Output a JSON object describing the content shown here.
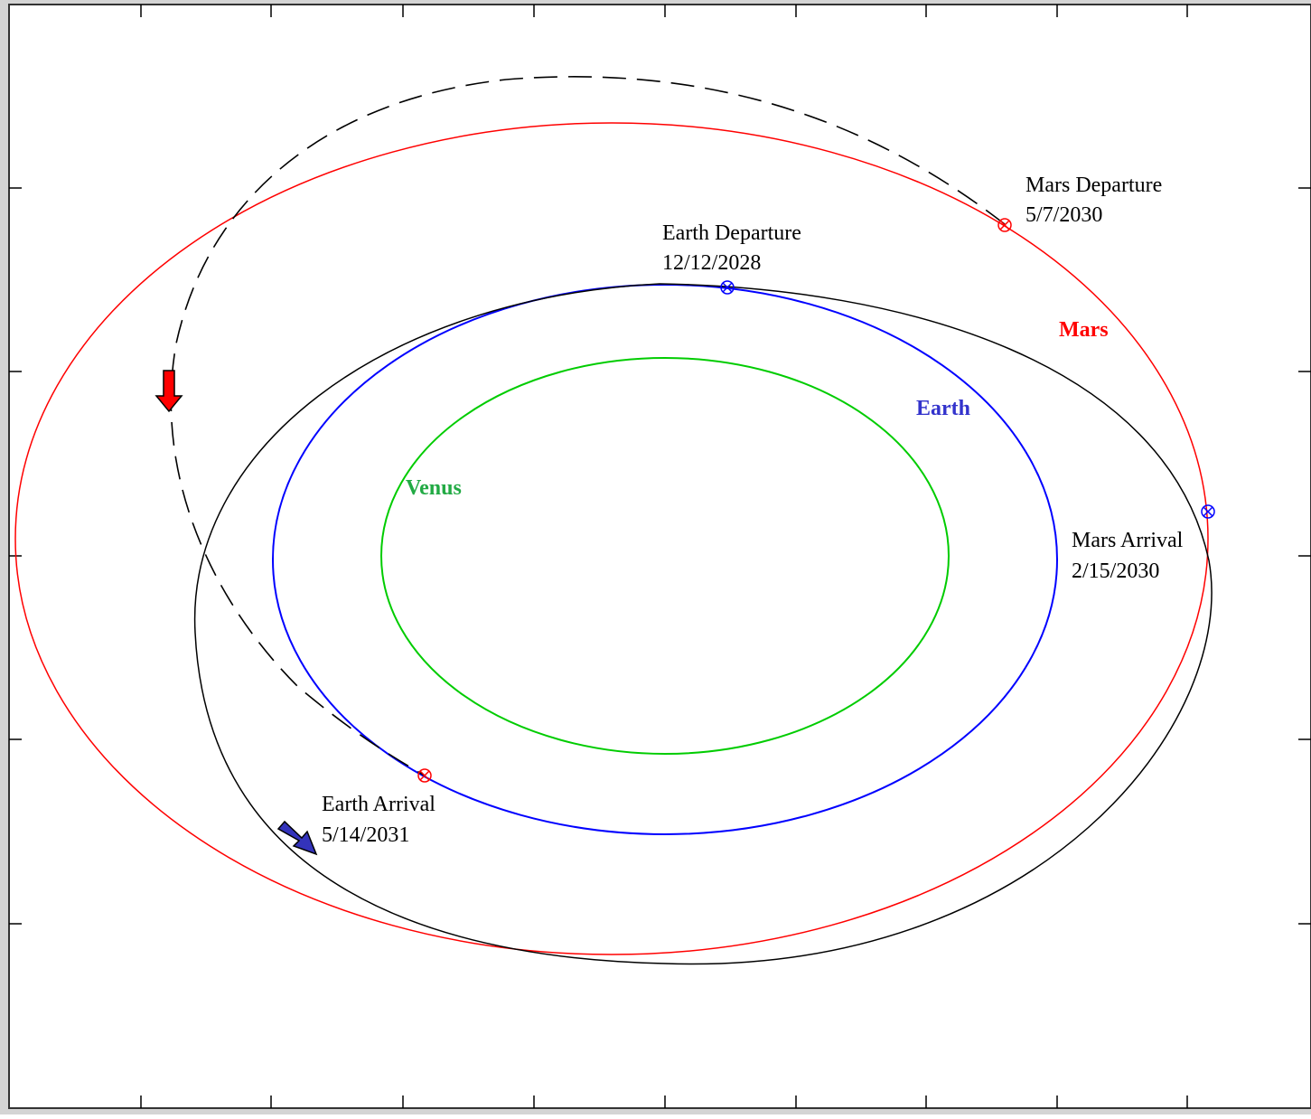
{
  "colors": {
    "mars": "#ff0000",
    "earth": "#0000ff",
    "venus": "#00cc00",
    "trajectory": "#000000",
    "earth_label": "#3333cc",
    "venus_label": "#22aa44",
    "mars_label": "#ff0000"
  },
  "orbit_labels": {
    "mars": "Mars",
    "earth": "Earth",
    "venus": "Venus"
  },
  "events": {
    "earth_departure": {
      "name": "Earth Departure",
      "date": "12/12/2028"
    },
    "mars_arrival": {
      "name": "Mars Arrival",
      "date": "2/15/2030"
    },
    "mars_departure": {
      "name": "Mars Departure",
      "date": "5/7/2030"
    },
    "earth_arrival": {
      "name": "Earth Arrival",
      "date": "5/14/2031"
    }
  },
  "markers": {
    "earth_departure": "circle-x-icon",
    "mars_arrival": "circle-x-icon",
    "mars_departure": "circle-x-icon",
    "earth_arrival": "circle-x-icon",
    "red_arrow": "arrow-down-icon",
    "blue_arrow": "arrow-down-right-icon"
  }
}
